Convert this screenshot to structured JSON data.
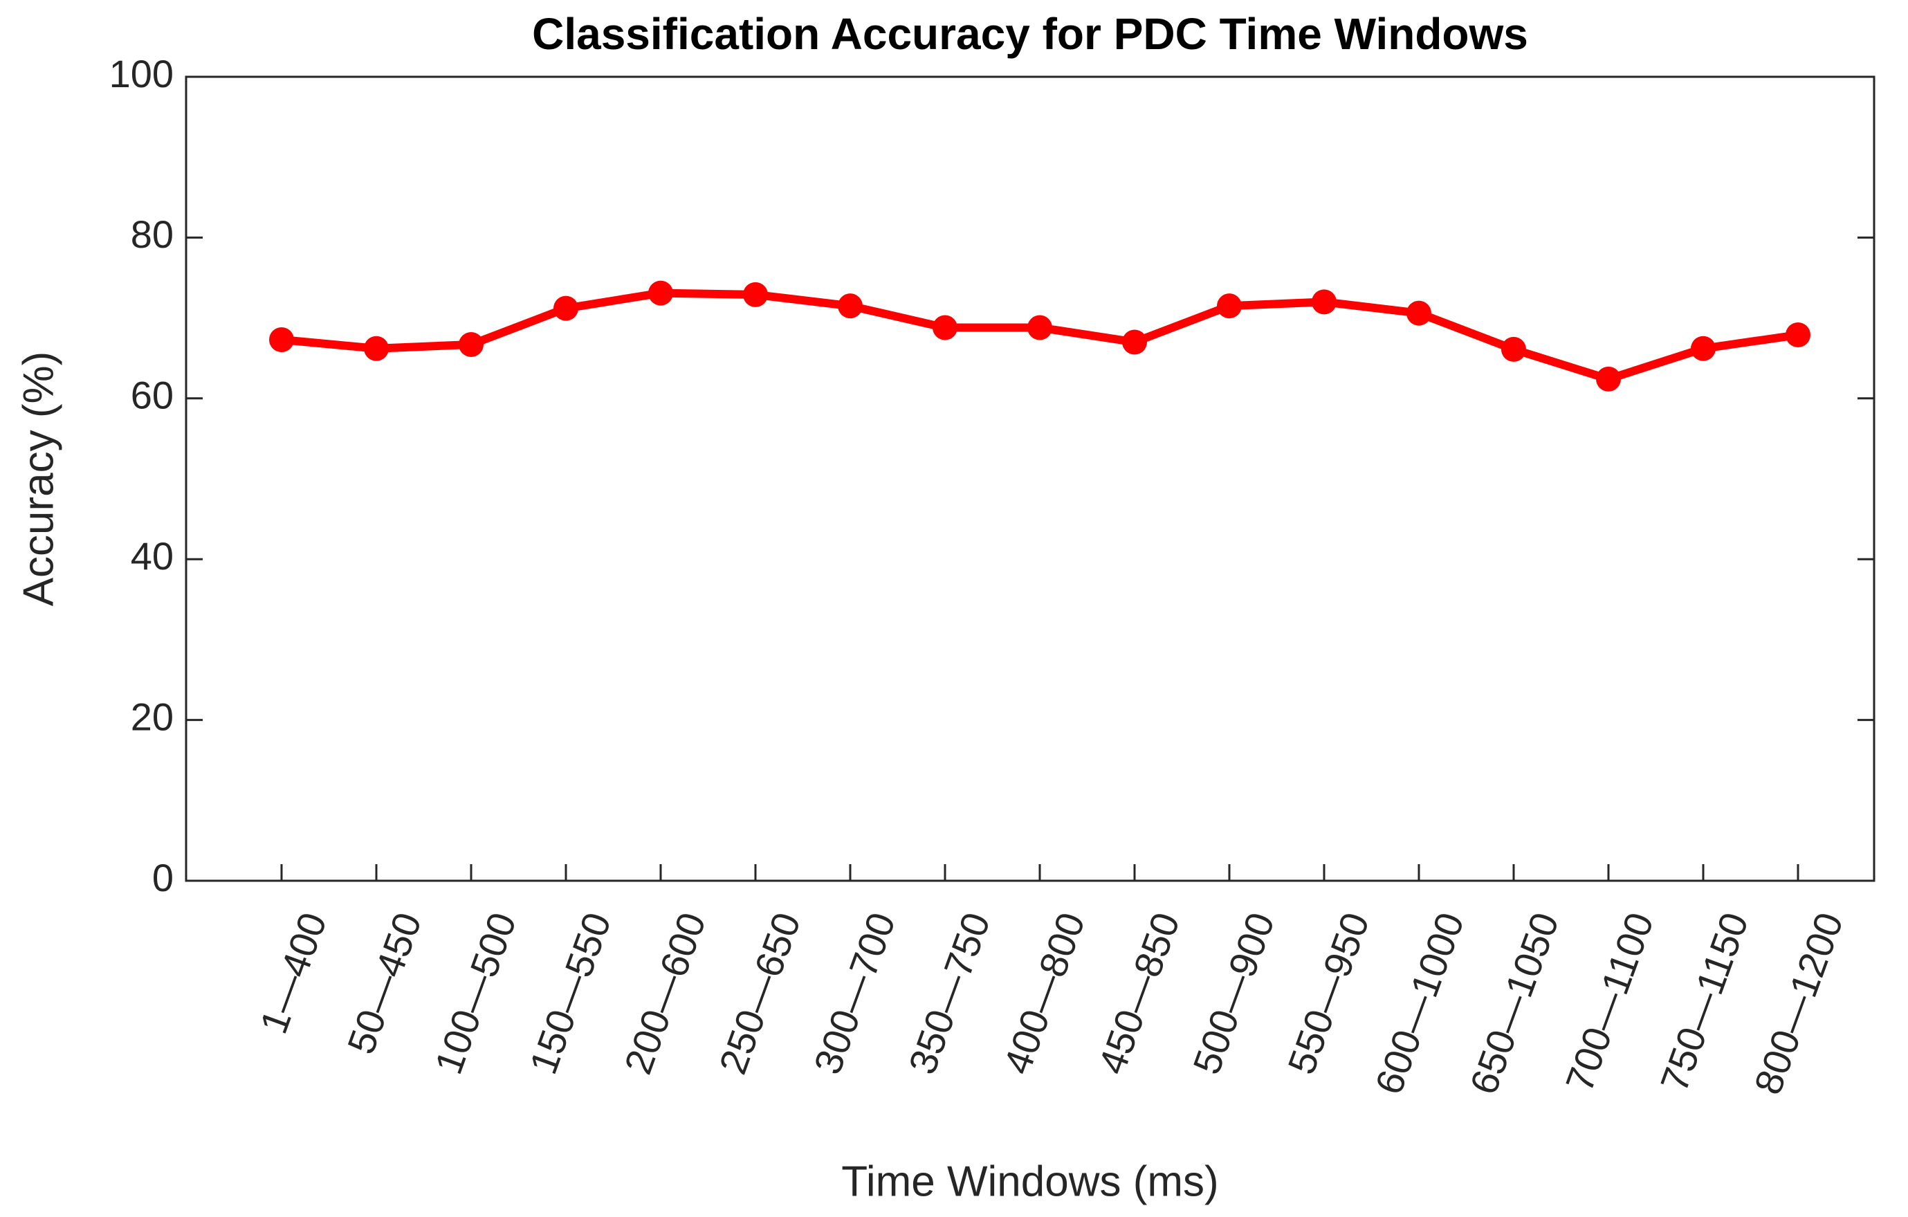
{
  "chart_data": {
    "type": "line",
    "title": "Classification Accuracy for PDC Time Windows",
    "xlabel": "Time Windows (ms)",
    "ylabel": "Accuracy (%)",
    "categories": [
      "1—400",
      "50—450",
      "100—500",
      "150—550",
      "200—600",
      "250—650",
      "300—700",
      "350—750",
      "400—800",
      "450—850",
      "500—900",
      "550—950",
      "600—1000",
      "650—1050",
      "700—1100",
      "750—1150",
      "800—1200"
    ],
    "series": [
      {
        "name": "Accuracy",
        "color": "#ff0000",
        "values": [
          67.3,
          66.2,
          66.7,
          71.2,
          73.1,
          72.9,
          71.5,
          68.8,
          68.8,
          67.0,
          71.5,
          72.0,
          70.6,
          66.1,
          62.4,
          66.2,
          67.9
        ]
      }
    ],
    "ylim": [
      0,
      100
    ],
    "yticks": [
      0,
      20,
      40,
      60,
      80,
      100
    ],
    "grid": false
  }
}
